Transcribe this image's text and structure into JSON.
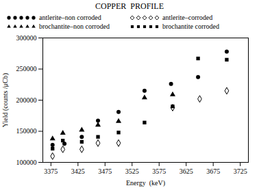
{
  "chart_data": {
    "type": "scatter",
    "title": "COPPER  PROFILE",
    "xlabel": "Energy  (keV)",
    "ylabel": "Yield (counts /μCb)",
    "xlim": [
      3360,
      3740
    ],
    "ylim": [
      100000,
      300000
    ],
    "xticks": [
      3375,
      3425,
      3475,
      3525,
      3575,
      3625,
      3675,
      3725
    ],
    "yticks": [
      100000,
      150000,
      200000,
      250000,
      300000
    ],
    "series": [
      {
        "name": "antlerite–non corroded",
        "color": "black",
        "marker": "circle",
        "x": [
          3378,
          3400,
          3432,
          3462,
          3500,
          3548,
          3597,
          3647,
          3700
        ],
        "values": [
          128000,
          130000,
          141000,
          167000,
          181000,
          215000,
          226000,
          237000,
          278000
        ]
      },
      {
        "name": "antlerite–corroded",
        "color": "black",
        "marker": "diamond-open",
        "x": [
          3378,
          3397,
          3432,
          3462,
          3500,
          3600,
          3650,
          3700
        ],
        "values": [
          110000,
          121000,
          121000,
          131000,
          131000,
          188000,
          202000,
          215000
        ]
      },
      {
        "name": "brochantite–non corroded",
        "color": "black",
        "marker": "triangle",
        "x": [
          3378,
          3397,
          3432,
          3462,
          3500,
          3548,
          3600
        ],
        "values": [
          138000,
          147000,
          152000,
          160000,
          166000,
          204000,
          209000
        ]
      },
      {
        "name": "brochantite corroded",
        "color": "black",
        "marker": "square",
        "x": [
          3378,
          3397,
          3432,
          3462,
          3500,
          3548,
          3600,
          3647,
          3700
        ],
        "values": [
          122000,
          135000,
          133000,
          141000,
          148000,
          164000,
          190000,
          267000,
          265000
        ]
      }
    ]
  }
}
